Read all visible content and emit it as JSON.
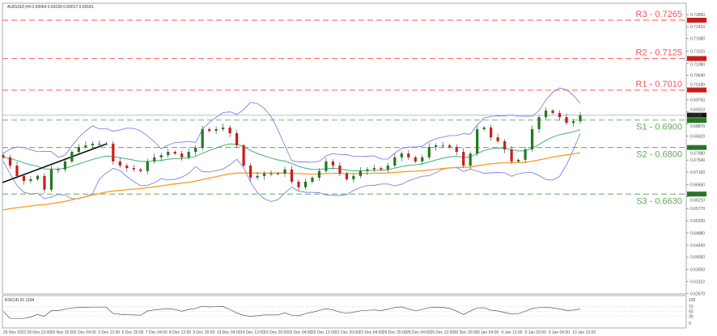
{
  "header": {
    "symbol_info": "AUDUSD,H4  0.69064 0.69199 0.69017 0.69181"
  },
  "rsi_panel": {
    "label": "RSI(14) 61.1194",
    "levels": [
      "100",
      "70",
      "50",
      "30",
      "0"
    ]
  },
  "colors": {
    "bull": "#1e7a1e",
    "bear": "#d11a1a",
    "bands": "#8080e8",
    "ma_green": "#3cb371",
    "ma_orange": "#ff9a1f",
    "resistance": "#ff5050",
    "support": "#5fa85f",
    "price_line": "#a9b4bf"
  },
  "chart_data": {
    "type": "candlestick",
    "title": "AUDUSD,H4",
    "ylim": [
      0.6267,
      0.7285
    ],
    "y_ticks": [
      "0.72850",
      "0.72410",
      "0.71980",
      "0.71520",
      "0.71080",
      "0.70640",
      "0.70180",
      "0.69750",
      "0.69310",
      "0.68870",
      "0.68420",
      "0.67980",
      "0.67540",
      "0.67100",
      "0.66650",
      "0.66210",
      "0.65770",
      "0.65330",
      "0.64880",
      "0.64440",
      "0.64000",
      "0.63550",
      "0.63110",
      "0.62670"
    ],
    "x_ticks": [
      "25 Nov 2022",
      "28 Nov 12:00",
      "29 Nov 20:00",
      "1 Dec 04:00",
      "2 Dec 12:00",
      "5 Dec 20:00",
      "7 Dec 04:00",
      "8 Dec 12:00",
      "9 Dec 20:00",
      "13 Dec 04:00",
      "14 Dec 12:00",
      "15 Dec 20:00",
      "19 Dec 04:00",
      "20 Dec 12:00",
      "21 Dec 20:00",
      "23 Dec 04:00",
      "26 Dec 20:00",
      "28 Dec 04:00",
      "29 Dec 12:00",
      "30 Dec 20:00",
      "3 Jan 04:00",
      "4 Jan 12:00",
      "5 Jan 20:00",
      "9 Jan 04:00",
      "10 Jan 12:00"
    ],
    "closes": [
      0.6764,
      0.6734,
      0.6696,
      0.6678,
      0.6684,
      0.6696,
      0.6646,
      0.672,
      0.672,
      0.6749,
      0.6784,
      0.6802,
      0.6808,
      0.6814,
      0.6814,
      0.6814,
      0.6749,
      0.6734,
      0.6725,
      0.672,
      0.6714,
      0.6749,
      0.6764,
      0.6772,
      0.6784,
      0.6778,
      0.6764,
      0.6784,
      0.6799,
      0.6867,
      0.6861,
      0.6867,
      0.6873,
      0.6852,
      0.6808,
      0.6734,
      0.669,
      0.6696,
      0.6705,
      0.6705,
      0.6705,
      0.672,
      0.6675,
      0.6655,
      0.6675,
      0.669,
      0.6714,
      0.6749,
      0.6734,
      0.6705,
      0.6684,
      0.6696,
      0.6714,
      0.672,
      0.6725,
      0.672,
      0.6734,
      0.6764,
      0.6778,
      0.6764,
      0.6749,
      0.6764,
      0.6802,
      0.6808,
      0.6808,
      0.6802,
      0.6784,
      0.6734,
      0.6778,
      0.6867,
      0.6873,
      0.6837,
      0.6823,
      0.6793,
      0.6749,
      0.6755,
      0.6793,
      0.6867,
      0.6911,
      0.6935,
      0.6926,
      0.6911,
      0.689,
      0.6896,
      0.6918
    ],
    "levels": [
      {
        "name": "R3",
        "label": "R3 - 0.7265",
        "value": 0.7265,
        "axis_label": "0.72650",
        "kind": "resistance"
      },
      {
        "name": "R2",
        "label": "R2 - 0.7125",
        "value": 0.7125,
        "axis_label": "0.71250",
        "kind": "resistance"
      },
      {
        "name": "R1",
        "label": "R1 - 0.7010",
        "value": 0.701,
        "axis_label": "0.70100",
        "kind": "resistance"
      },
      {
        "name": "S1",
        "label": "S1 - 0.6900",
        "value": 0.69,
        "axis_label": "0.69000",
        "kind": "support"
      },
      {
        "name": "S2",
        "label": "S2 - 0.6800",
        "value": 0.68,
        "axis_label": "0.68000",
        "kind": "support"
      },
      {
        "name": "S3",
        "label": "S3 - 0.6630",
        "value": 0.663,
        "axis_label": "0.66300",
        "kind": "support"
      }
    ],
    "current_price": {
      "value": 0.69181,
      "label": "0.69181"
    }
  }
}
